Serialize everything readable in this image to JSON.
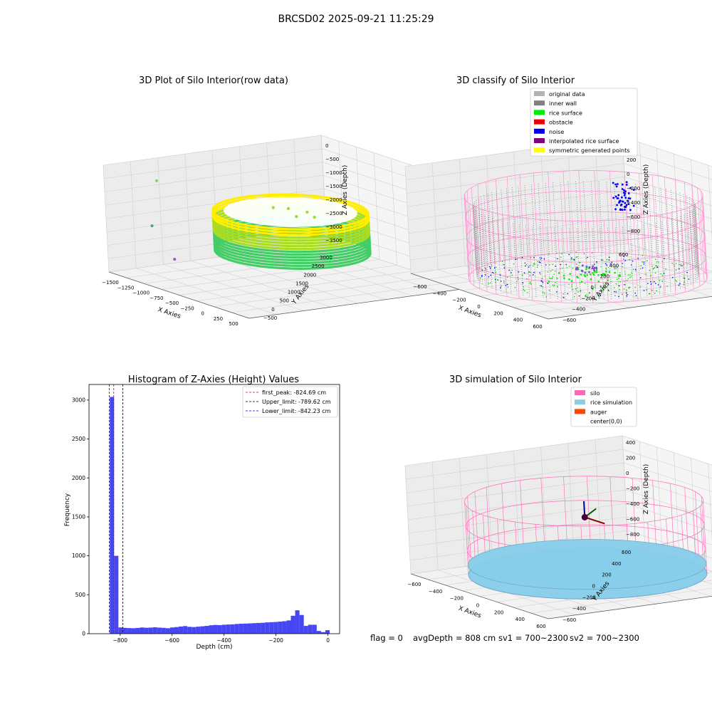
{
  "figure": {
    "suptitle": "BRCSD02 2025-09-21 11:25:29",
    "status_line": {
      "flag": "flag = 0",
      "avg_depth": "avgDepth = 808 cm",
      "sv1": "sv1 = 700~2300",
      "sv2": "sv2 = 700~2300"
    }
  },
  "chart_data": [
    {
      "type": "scatter",
      "projection": "3d",
      "title": "3D Plot of Silo Interior(row data)",
      "xlabel": "X Axies",
      "ylabel": "Y Axies",
      "zlabel": "Z Axies (Depth)",
      "x_ticks": [
        "−1500",
        "−1250",
        "−1000",
        "−750",
        "−500",
        "−250",
        "0",
        "250",
        "500"
      ],
      "y_ticks": [
        "−500",
        "0",
        "500",
        "1000",
        "1500",
        "2000",
        "2500",
        "3000"
      ],
      "z_ticks": [
        "0",
        "−500",
        "−1000",
        "−1500",
        "−2000",
        "−2500",
        "−3000",
        "−3500"
      ],
      "xlim": [
        -1550,
        600
      ],
      "ylim": [
        -600,
        3200
      ],
      "zlim": [
        -3700,
        100
      ],
      "colormap": [
        "#44cc66",
        "#aadd22",
        "#ffee00"
      ],
      "ring": {
        "cx": -380,
        "cy": 1300,
        "rx": 700,
        "ry": 1100,
        "z_top": -1200,
        "z_bottom": -2600
      },
      "outliers": [
        {
          "x": -1450,
          "y": 200,
          "z": -600,
          "color": "#88cc66"
        },
        {
          "x": -1200,
          "y": -200,
          "z": -1900,
          "color": "#559988"
        },
        {
          "x": -650,
          "y": -450,
          "z": -2600,
          "color": "#9955bb"
        }
      ],
      "grid": true
    },
    {
      "type": "scatter",
      "projection": "3d",
      "title": "3D classify of Silo Interior",
      "xlabel": "X Axies",
      "ylabel": "Y Axies",
      "zlabel": "Z Axies (Depth)",
      "x_ticks": [
        "−600",
        "−400",
        "−200",
        "0",
        "200",
        "400",
        "600"
      ],
      "y_ticks": [
        "−600",
        "−400",
        "−200",
        "0",
        "200",
        "400",
        "600"
      ],
      "z_ticks": [
        "200",
        "0",
        "−200",
        "−400",
        "−600",
        "−800"
      ],
      "xlim": [
        -700,
        700
      ],
      "ylim": [
        -700,
        700
      ],
      "zlim": [
        -900,
        350
      ],
      "legend_location": "upper right",
      "legend": [
        {
          "label": "original data",
          "color": "#b3b3b3"
        },
        {
          "label": "inner wall",
          "color": "#808080"
        },
        {
          "label": "rice surface",
          "color": "#00ee00"
        },
        {
          "label": "obstacle",
          "color": "#ee0000"
        },
        {
          "label": "noise",
          "color": "#0000ee"
        },
        {
          "label": "interpolated rice surface",
          "color": "#800080"
        },
        {
          "label": "symmetric generated points",
          "color": "#ffff00"
        }
      ],
      "silo_outline_color": "#ff88cc",
      "silo": {
        "radius": 650,
        "z_top": 100,
        "z_bottom": -860
      },
      "grid": true
    },
    {
      "type": "bar",
      "title": "Histogram of Z-Axies (Height) Values",
      "xlabel": "Depth (cm)",
      "ylabel": "Frequency",
      "xlim": [
        -920,
        45
      ],
      "ylim": [
        0,
        3200
      ],
      "x_ticks": [
        -800,
        -600,
        -400,
        -200,
        0
      ],
      "x_tick_labels": [
        "−800",
        "−600",
        "−400",
        "−200",
        "0"
      ],
      "y_ticks": [
        0,
        500,
        1000,
        1500,
        2000,
        2500,
        3000
      ],
      "bar_color": "#4646f5",
      "bin_width": 16.6,
      "bins": [
        {
          "x": -840,
          "value": 3040
        },
        {
          "x": -823.4,
          "value": 1000
        },
        {
          "x": -806.8,
          "value": 80
        },
        {
          "x": -790.2,
          "value": 75
        },
        {
          "x": -773.6,
          "value": 72
        },
        {
          "x": -757.0,
          "value": 70
        },
        {
          "x": -740.4,
          "value": 74
        },
        {
          "x": -723.8,
          "value": 80
        },
        {
          "x": -707.2,
          "value": 76
        },
        {
          "x": -690.6,
          "value": 78
        },
        {
          "x": -674.0,
          "value": 82
        },
        {
          "x": -657.4,
          "value": 78
        },
        {
          "x": -640.8,
          "value": 75
        },
        {
          "x": -624.2,
          "value": 70
        },
        {
          "x": -607.6,
          "value": 80
        },
        {
          "x": -591.0,
          "value": 85
        },
        {
          "x": -574.4,
          "value": 92
        },
        {
          "x": -557.8,
          "value": 98
        },
        {
          "x": -541.2,
          "value": 88
        },
        {
          "x": -524.6,
          "value": 85
        },
        {
          "x": -508.0,
          "value": 90
        },
        {
          "x": -491.4,
          "value": 95
        },
        {
          "x": -474.8,
          "value": 100
        },
        {
          "x": -458.2,
          "value": 108
        },
        {
          "x": -441.6,
          "value": 112
        },
        {
          "x": -425.0,
          "value": 110
        },
        {
          "x": -408.4,
          "value": 115
        },
        {
          "x": -391.8,
          "value": 118
        },
        {
          "x": -375.2,
          "value": 120
        },
        {
          "x": -358.6,
          "value": 125
        },
        {
          "x": -342.0,
          "value": 128
        },
        {
          "x": -325.4,
          "value": 130
        },
        {
          "x": -308.8,
          "value": 132
        },
        {
          "x": -292.2,
          "value": 135
        },
        {
          "x": -275.6,
          "value": 138
        },
        {
          "x": -259.0,
          "value": 140
        },
        {
          "x": -242.4,
          "value": 145
        },
        {
          "x": -225.8,
          "value": 148
        },
        {
          "x": -209.2,
          "value": 150
        },
        {
          "x": -192.6,
          "value": 155
        },
        {
          "x": -176.0,
          "value": 160
        },
        {
          "x": -159.4,
          "value": 170
        },
        {
          "x": -142.8,
          "value": 230
        },
        {
          "x": -126.2,
          "value": 300
        },
        {
          "x": -109.6,
          "value": 240
        },
        {
          "x": -93.0,
          "value": 100
        },
        {
          "x": -76.4,
          "value": 115
        },
        {
          "x": -59.8,
          "value": 115
        },
        {
          "x": -43.2,
          "value": 35
        },
        {
          "x": -26.6,
          "value": 20
        },
        {
          "x": -10.0,
          "value": 45
        }
      ],
      "vlines": [
        {
          "label": "first_peak: -824.69 cm",
          "x": -824.69,
          "color": "#e00000"
        },
        {
          "label": "Upper_limit: -789.62 cm",
          "x": -789.62,
          "color": "#000000"
        },
        {
          "label": "Lower_limit: -842.23 cm",
          "x": -842.23,
          "color": "#0000cc"
        }
      ],
      "legend_location": "upper right"
    },
    {
      "type": "scatter",
      "projection": "3d",
      "title": "3D simulation of Silo Interior",
      "xlabel": "X Axies",
      "ylabel": "Y Axies",
      "zlabel": "Z Axies (Depth)",
      "x_ticks": [
        "−600",
        "−400",
        "−200",
        "0",
        "200",
        "400",
        "600"
      ],
      "y_ticks": [
        "−600",
        "−400",
        "−200",
        "0",
        "200",
        "400",
        "600"
      ],
      "z_ticks": [
        "400",
        "200",
        "0",
        "−200",
        "−400",
        "−600",
        "−800"
      ],
      "xlim": [
        -700,
        700
      ],
      "ylim": [
        -700,
        700
      ],
      "zlim": [
        -900,
        450
      ],
      "legend_location": "upper right",
      "legend": [
        {
          "label": "silo",
          "color": "#ff69b4"
        },
        {
          "label": "rice simulation",
          "color": "#87ceeb"
        },
        {
          "label": "auger",
          "color": "#ff4500"
        },
        {
          "label": "center(0,0)",
          "color": ""
        }
      ],
      "silo": {
        "radius": 650,
        "z_top": 100,
        "z_bottom": -808
      },
      "grid": true
    }
  ]
}
